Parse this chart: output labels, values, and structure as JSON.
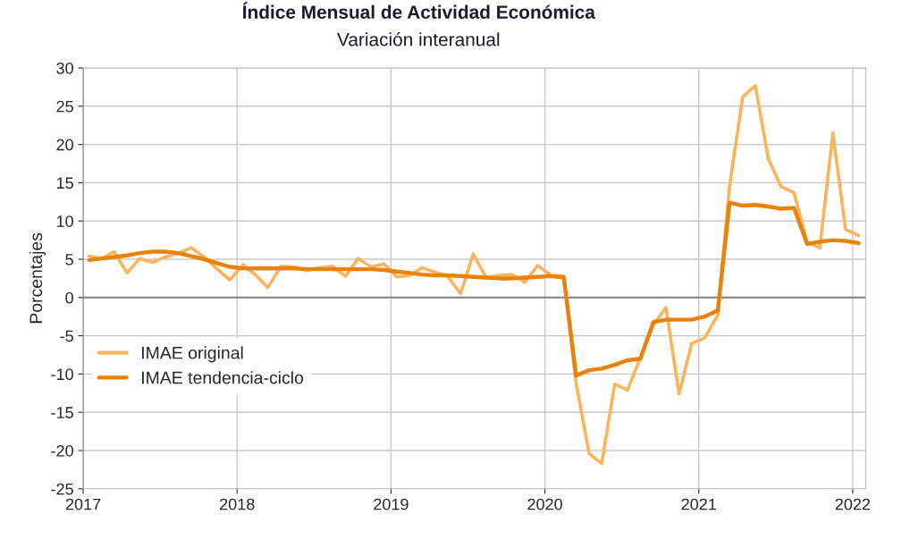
{
  "chart_data": {
    "type": "line",
    "title": "Índice Mensual de Actividad Económica",
    "subtitle": "Variación interanual",
    "ylabel": "Porcentajes",
    "x": [
      "2017-01-15",
      "2017-02-15",
      "2017-03-15",
      "2017-04-15",
      "2017-05-15",
      "2017-06-15",
      "2017-07-15",
      "2017-08-15",
      "2017-09-15",
      "2017-10-15",
      "2017-11-15",
      "2017-12-15",
      "2018-01-15",
      "2018-02-15",
      "2018-03-15",
      "2018-04-15",
      "2018-05-15",
      "2018-06-15",
      "2018-07-15",
      "2018-08-15",
      "2018-09-15",
      "2018-10-15",
      "2018-11-15",
      "2018-12-15",
      "2019-01-15",
      "2019-02-15",
      "2019-03-15",
      "2019-04-15",
      "2019-05-15",
      "2019-06-15",
      "2019-07-15",
      "2019-08-15",
      "2019-09-15",
      "2019-10-15",
      "2019-11-15",
      "2019-12-15",
      "2020-01-15",
      "2020-02-15",
      "2020-03-15",
      "2020-04-15",
      "2020-05-15",
      "2020-06-15",
      "2020-07-15",
      "2020-08-15",
      "2020-09-15",
      "2020-10-15",
      "2020-11-15",
      "2020-12-15",
      "2021-01-15",
      "2021-02-15",
      "2021-03-15",
      "2021-04-15",
      "2021-05-15",
      "2021-06-15",
      "2021-07-15",
      "2021-08-15",
      "2021-09-15",
      "2021-10-15",
      "2021-11-15",
      "2021-12-15",
      "2022-01-15"
    ],
    "series": [
      {
        "name": "IMAE original",
        "color": "#fcb45c",
        "values": [
          5.4,
          5.1,
          6.0,
          3.2,
          5.1,
          4.6,
          5.3,
          5.8,
          6.5,
          5.3,
          3.7,
          2.3,
          4.3,
          2.9,
          1.3,
          4.1,
          4.0,
          3.5,
          3.9,
          4.1,
          2.8,
          5.1,
          4.0,
          4.4,
          2.7,
          2.9,
          3.9,
          3.3,
          2.8,
          0.5,
          5.7,
          2.6,
          2.9,
          3.0,
          2.0,
          4.2,
          2.9,
          2.8,
          -11.1,
          -20.4,
          -21.7,
          -11.3,
          -12.1,
          -7.9,
          -3.6,
          -1.3,
          -12.6,
          -6.0,
          -5.3,
          -2.3,
          14.6,
          26.2,
          27.7,
          18.1,
          14.5,
          13.7,
          7.2,
          6.5,
          21.5,
          8.9,
          8.1
        ]
      },
      {
        "name": "IMAE tendencia-ciclo",
        "color": "#e8820c",
        "values": [
          4.9,
          5.1,
          5.3,
          5.5,
          5.8,
          6.0,
          6.0,
          5.8,
          5.4,
          5.0,
          4.5,
          4.0,
          3.8,
          3.8,
          3.8,
          3.8,
          3.8,
          3.7,
          3.7,
          3.7,
          3.7,
          3.7,
          3.7,
          3.6,
          3.4,
          3.2,
          3.0,
          2.9,
          2.9,
          2.8,
          2.7,
          2.6,
          2.5,
          2.5,
          2.6,
          2.7,
          2.8,
          2.6,
          -10.2,
          -9.5,
          -9.3,
          -8.8,
          -8.2,
          -8.0,
          -3.2,
          -2.9,
          -2.9,
          -2.9,
          -2.5,
          -1.7,
          12.4,
          12.0,
          12.1,
          11.9,
          11.6,
          11.7,
          7.0,
          7.3,
          7.5,
          7.4,
          7.1
        ]
      }
    ],
    "xlim": [
      "2017-01-01",
      "2022-02-01"
    ],
    "xticks": [
      {
        "value": "2017-01-01",
        "label": "2017"
      },
      {
        "value": "2018-01-01",
        "label": "2018"
      },
      {
        "value": "2019-01-01",
        "label": "2019"
      },
      {
        "value": "2020-01-01",
        "label": "2020"
      },
      {
        "value": "2021-01-01",
        "label": "2021"
      },
      {
        "value": "2022-01-01",
        "label": "2022"
      }
    ],
    "ylim": [
      -25,
      30
    ],
    "yticks": [
      -25,
      -20,
      -15,
      -10,
      -5,
      0,
      5,
      10,
      15,
      20,
      25,
      30
    ],
    "ref_lines": [
      {
        "axis": "y",
        "value": 0,
        "color": "#808080"
      }
    ],
    "grid": true,
    "legend": "center left",
    "line_style": "solid",
    "marker": "none"
  }
}
